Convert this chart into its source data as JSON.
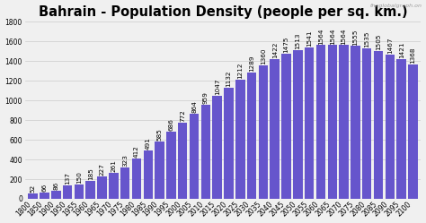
{
  "title": "Bahrain - Population Density (people per sq. km.)",
  "watermark": "theglobalgraph.on",
  "bar_color": "#6655cc",
  "background_color": "#f0f0f0",
  "plot_bg_color": "#f0f0f0",
  "years": [
    1800,
    1850,
    1900,
    1950,
    1955,
    1960,
    1965,
    1970,
    1975,
    1980,
    1985,
    1990,
    1995,
    2000,
    2005,
    2010,
    2015,
    2020,
    2025,
    2030,
    2035,
    2040,
    2045,
    2050,
    2055,
    2060,
    2065,
    2070,
    2075,
    2080,
    2085,
    2090,
    2095,
    2100
  ],
  "values": [
    52,
    66,
    86,
    137,
    150,
    185,
    227,
    261,
    323,
    412,
    491,
    585,
    686,
    772,
    864,
    959,
    1047,
    1132,
    1212,
    1289,
    1360,
    1422,
    1475,
    1513,
    1541,
    1564,
    1564,
    1564,
    1555,
    1535,
    1505,
    1467,
    1421,
    1368
  ],
  "ylim": [
    0,
    1800
  ],
  "yticks": [
    0,
    200,
    400,
    600,
    800,
    1000,
    1200,
    1400,
    1600,
    1800
  ],
  "title_fontsize": 10.5,
  "label_fontsize": 5.2,
  "tick_fontsize": 5.5,
  "watermark_fontsize": 4.5
}
